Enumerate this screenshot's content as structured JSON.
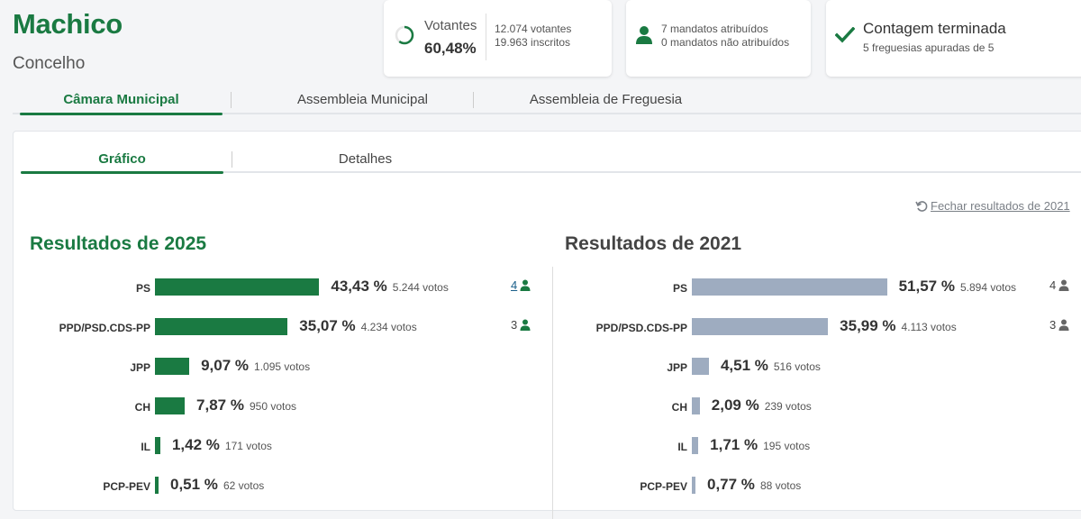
{
  "header": {
    "title": "Machico",
    "subtitle": "Concelho"
  },
  "votantes": {
    "label": "Votantes",
    "pct": "60,48%",
    "pct_value": 0.6048,
    "line1": "12.074 votantes",
    "line2": "19.963 inscritos"
  },
  "mandatos": {
    "line1": "7 mandatos atribuídos",
    "line2": "0 mandatos não atribuídos",
    "icon": "person-icon"
  },
  "contagem": {
    "title": "Contagem terminada",
    "subtitle": "5 freguesias apuradas de 5",
    "icon": "check-icon"
  },
  "tabs": [
    {
      "label": "Câmara Municipal",
      "active": true
    },
    {
      "label": "Assembleia Municipal",
      "active": false
    },
    {
      "label": "Assembleia de Freguesia",
      "active": false
    }
  ],
  "subtabs": [
    {
      "label": "Gráfico",
      "active": true
    },
    {
      "label": "Detalhes",
      "active": false
    }
  ],
  "fechar": "Fechar resultados de 2021",
  "colors": {
    "green": "#1a7a42",
    "grey_bar": "#9eacc0"
  },
  "chart_data": [
    {
      "type": "bar",
      "title": "Resultados de 2025",
      "categories": [
        "PS",
        "PPD/PSD.CDS-PP",
        "JPP",
        "CH",
        "IL",
        "PCP-PEV"
      ],
      "values": [
        43.43,
        35.07,
        9.07,
        7.87,
        1.42,
        0.51
      ],
      "pct_labels": [
        "43,43 %",
        "35,07 %",
        "9,07 %",
        "7,87 %",
        "1,42 %",
        "0,51 %"
      ],
      "vote_labels": [
        "5.244 votos",
        "4.234 votos",
        "1.095 votos",
        "950 votos",
        "171 votos",
        "62 votos"
      ],
      "seats": [
        "4",
        "3",
        "",
        "",
        "",
        ""
      ]
    },
    {
      "type": "bar",
      "title": "Resultados de 2021",
      "categories": [
        "PS",
        "PPD/PSD.CDS-PP",
        "JPP",
        "CH",
        "IL",
        "PCP-PEV"
      ],
      "values": [
        51.57,
        35.99,
        4.51,
        2.09,
        1.71,
        0.77
      ],
      "pct_labels": [
        "51,57 %",
        "35,99 %",
        "4,51 %",
        "2,09 %",
        "1,71 %",
        "0,77 %"
      ],
      "vote_labels": [
        "5.894 votos",
        "4.113 votos",
        "516 votos",
        "239 votos",
        "195 votos",
        "88 votos"
      ],
      "seats": [
        "4",
        "3",
        "",
        "",
        "",
        ""
      ]
    }
  ]
}
